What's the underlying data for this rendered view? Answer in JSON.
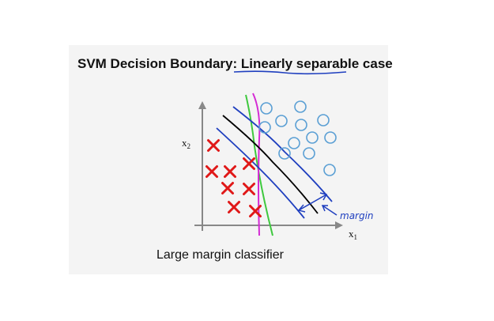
{
  "slide": {
    "title_prefix": "SVM Decision Boundary: ",
    "title_emphasis": "Linearly separable",
    "title_suffix": " case",
    "caption": "Large margin classifier"
  },
  "diagram": {
    "x_axis_label": "x",
    "x_axis_subscript": "1",
    "y_axis_label": "x",
    "y_axis_subscript": "2",
    "annotation": "margin",
    "colors": {
      "negative_marker": "#e01818",
      "positive_marker": "#5a9fd4",
      "decision_boundary": "#000000",
      "margin_lines": "#1f3fbf",
      "alt_boundary_green": "#3ec83e",
      "alt_boundary_magenta": "#d42ad4",
      "axes": "#888888"
    },
    "marker_types": {
      "negative": "x-cross",
      "positive": "circle"
    }
  }
}
